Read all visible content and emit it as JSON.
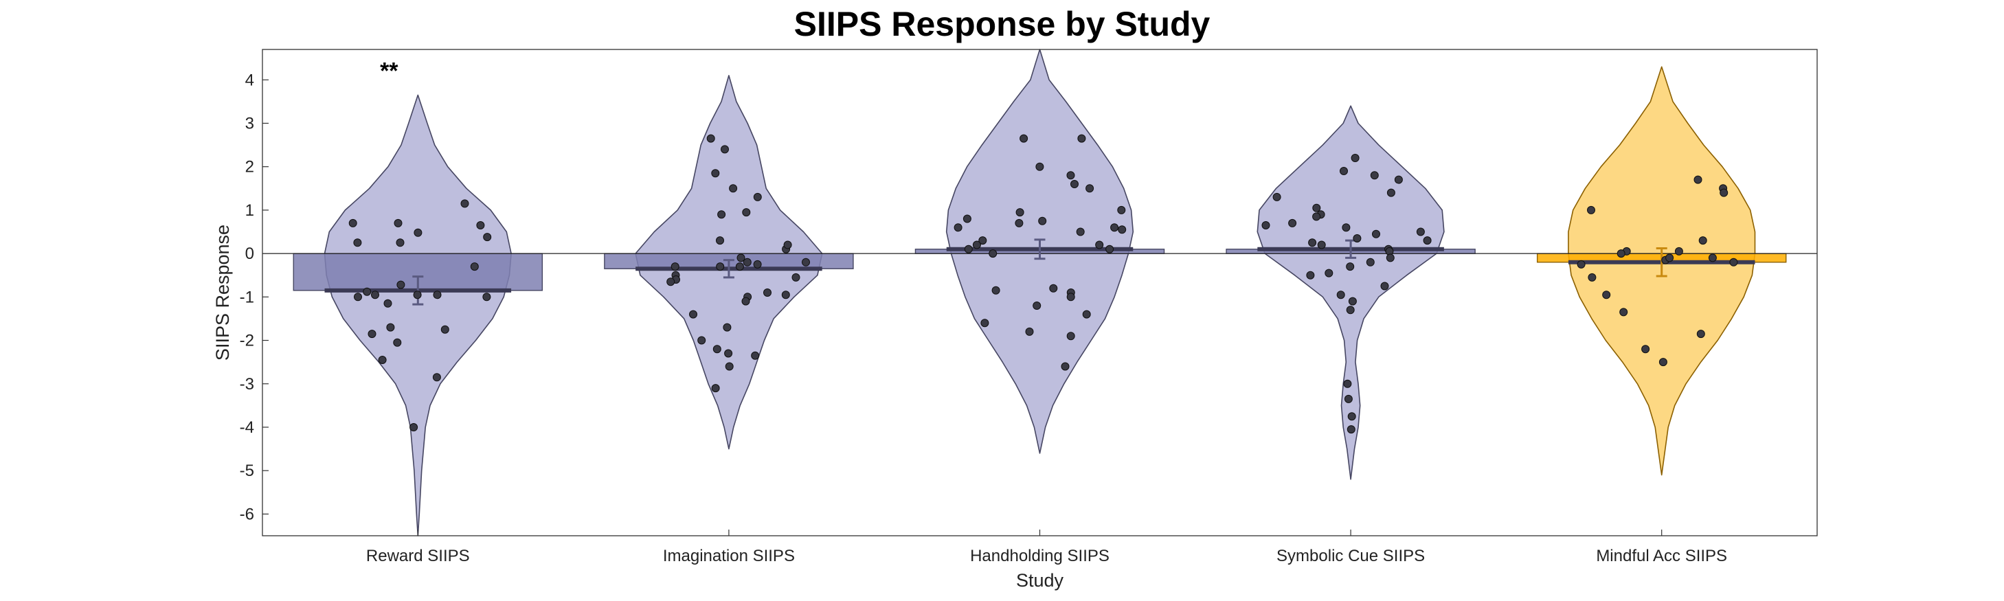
{
  "chart_data": {
    "type": "bar",
    "title": "SIIPS Response by Study",
    "xlabel": "Study",
    "ylabel": "SIIPS Response",
    "ylim": [
      -6.5,
      4.7
    ],
    "yticks": [
      4,
      3,
      2,
      1,
      0,
      -1,
      -2,
      -3,
      -4,
      -5,
      -6
    ],
    "categories": [
      "Reward SIIPS",
      "Imagination SIIPS",
      "Handholding SIIPS",
      "Symbolic Cue SIIPS",
      "Mindful Acc SIIPS"
    ],
    "colors": [
      "#7f80b2",
      "#7f80b2",
      "#7f80b2",
      "#7f80b2",
      "#ffae00"
    ],
    "violin_colors": [
      "#bbbbdb",
      "#bbbbdb",
      "#bbbbdb",
      "#bbbbdb",
      "#fdd67c"
    ],
    "series": [
      {
        "name": "Reward SIIPS",
        "mean": -0.85,
        "sem": 0.32,
        "significance": "**",
        "points": [
          1.15,
          0.38,
          0.7,
          0.25,
          0.65,
          0.25,
          0.7,
          0.48,
          -0.95,
          -0.95,
          -1.0,
          -1.0,
          -0.72,
          -0.88,
          -0.95,
          -1.7,
          -1.85,
          -1.75,
          -1.15,
          -2.05,
          -2.45,
          -2.85,
          -4.0,
          -0.3
        ],
        "violin": [
          [
            3.65,
            0.0
          ],
          [
            3.0,
            0.1
          ],
          [
            2.5,
            0.18
          ],
          [
            2.0,
            0.32
          ],
          [
            1.5,
            0.52
          ],
          [
            1.0,
            0.78
          ],
          [
            0.5,
            0.95
          ],
          [
            0.0,
            1.0
          ],
          [
            -0.5,
            0.98
          ],
          [
            -1.0,
            0.92
          ],
          [
            -1.5,
            0.8
          ],
          [
            -2.0,
            0.62
          ],
          [
            -2.5,
            0.42
          ],
          [
            -3.0,
            0.24
          ],
          [
            -3.5,
            0.13
          ],
          [
            -4.0,
            0.08
          ],
          [
            -5.0,
            0.04
          ],
          [
            -6.0,
            0.015
          ],
          [
            -6.5,
            0.0
          ]
        ]
      },
      {
        "name": "Imagination SIIPS",
        "mean": -0.35,
        "sem": 0.2,
        "points": [
          2.65,
          2.4,
          1.85,
          1.5,
          1.3,
          0.9,
          0.95,
          0.3,
          0.1,
          0.2,
          -0.1,
          -0.2,
          -0.3,
          -0.25,
          -0.3,
          -0.5,
          -0.6,
          -0.55,
          -0.65,
          -0.3,
          -0.2,
          -0.9,
          -0.95,
          -1.0,
          -1.1,
          -1.4,
          -1.7,
          -2.0,
          -2.2,
          -2.3,
          -2.6,
          -2.35,
          -3.1
        ],
        "violin": [
          [
            4.1,
            0.0
          ],
          [
            3.5,
            0.08
          ],
          [
            3.0,
            0.2
          ],
          [
            2.5,
            0.3
          ],
          [
            2.0,
            0.35
          ],
          [
            1.5,
            0.4
          ],
          [
            1.0,
            0.55
          ],
          [
            0.5,
            0.8
          ],
          [
            0.0,
            1.0
          ],
          [
            -0.5,
            0.95
          ],
          [
            -1.0,
            0.7
          ],
          [
            -1.5,
            0.48
          ],
          [
            -2.0,
            0.38
          ],
          [
            -2.5,
            0.3
          ],
          [
            -3.0,
            0.22
          ],
          [
            -3.5,
            0.12
          ],
          [
            -4.0,
            0.05
          ],
          [
            -4.5,
            0.0
          ]
        ]
      },
      {
        "name": "Handholding SIIPS",
        "mean": 0.1,
        "sem": 0.22,
        "points": [
          2.65,
          2.65,
          2.0,
          1.6,
          1.5,
          1.8,
          1.0,
          0.95,
          0.8,
          0.75,
          0.6,
          0.55,
          0.5,
          0.3,
          0.2,
          0.1,
          0.0,
          0.2,
          0.1,
          -0.8,
          -0.85,
          -0.9,
          -1.0,
          -1.2,
          -1.4,
          -1.6,
          -1.8,
          -1.9,
          -2.6,
          0.7,
          0.6
        ],
        "violin": [
          [
            4.7,
            0.0
          ],
          [
            4.0,
            0.1
          ],
          [
            3.5,
            0.28
          ],
          [
            3.0,
            0.45
          ],
          [
            2.5,
            0.62
          ],
          [
            2.0,
            0.78
          ],
          [
            1.5,
            0.9
          ],
          [
            1.0,
            0.98
          ],
          [
            0.5,
            1.0
          ],
          [
            0.0,
            0.95
          ],
          [
            -0.5,
            0.88
          ],
          [
            -1.0,
            0.8
          ],
          [
            -1.5,
            0.7
          ],
          [
            -2.0,
            0.55
          ],
          [
            -2.5,
            0.4
          ],
          [
            -3.0,
            0.26
          ],
          [
            -3.5,
            0.14
          ],
          [
            -4.0,
            0.06
          ],
          [
            -4.6,
            0.0
          ]
        ]
      },
      {
        "name": "Symbolic Cue SIIPS",
        "mean": 0.1,
        "sem": 0.2,
        "points": [
          2.2,
          1.9,
          1.8,
          1.7,
          1.4,
          1.3,
          1.05,
          0.9,
          0.85,
          0.7,
          0.6,
          0.65,
          0.5,
          0.45,
          0.35,
          0.3,
          0.25,
          0.2,
          0.1,
          0.05,
          -0.1,
          -0.2,
          -0.3,
          -0.45,
          -0.5,
          -0.75,
          -0.95,
          -1.1,
          -1.3,
          -3.0,
          -3.35,
          -3.75,
          -4.05
        ],
        "violin": [
          [
            3.4,
            0.0
          ],
          [
            3.0,
            0.08
          ],
          [
            2.5,
            0.3
          ],
          [
            2.0,
            0.55
          ],
          [
            1.5,
            0.8
          ],
          [
            1.0,
            0.98
          ],
          [
            0.5,
            1.0
          ],
          [
            0.0,
            0.92
          ],
          [
            -0.5,
            0.6
          ],
          [
            -1.0,
            0.3
          ],
          [
            -1.5,
            0.14
          ],
          [
            -2.0,
            0.07
          ],
          [
            -2.5,
            0.05
          ],
          [
            -3.0,
            0.08
          ],
          [
            -3.5,
            0.1
          ],
          [
            -4.0,
            0.08
          ],
          [
            -4.5,
            0.04
          ],
          [
            -5.2,
            0.0
          ]
        ]
      },
      {
        "name": "Mindful Acc SIIPS",
        "mean": -0.2,
        "sem": 0.32,
        "points": [
          1.7,
          1.5,
          1.4,
          1.0,
          0.3,
          0.05,
          0.05,
          0.0,
          -0.15,
          -0.1,
          -0.2,
          -0.25,
          -0.55,
          -0.95,
          -1.35,
          -1.85,
          -2.2,
          -2.5,
          -0.1
        ],
        "violin": [
          [
            4.3,
            0.0
          ],
          [
            3.5,
            0.12
          ],
          [
            3.0,
            0.28
          ],
          [
            2.5,
            0.45
          ],
          [
            2.0,
            0.65
          ],
          [
            1.5,
            0.82
          ],
          [
            1.0,
            0.95
          ],
          [
            0.5,
            1.0
          ],
          [
            0.0,
            1.0
          ],
          [
            -0.5,
            0.97
          ],
          [
            -1.0,
            0.88
          ],
          [
            -1.5,
            0.75
          ],
          [
            -2.0,
            0.6
          ],
          [
            -2.5,
            0.42
          ],
          [
            -3.0,
            0.26
          ],
          [
            -3.5,
            0.14
          ],
          [
            -4.0,
            0.07
          ],
          [
            -5.1,
            0.0
          ]
        ]
      }
    ]
  }
}
